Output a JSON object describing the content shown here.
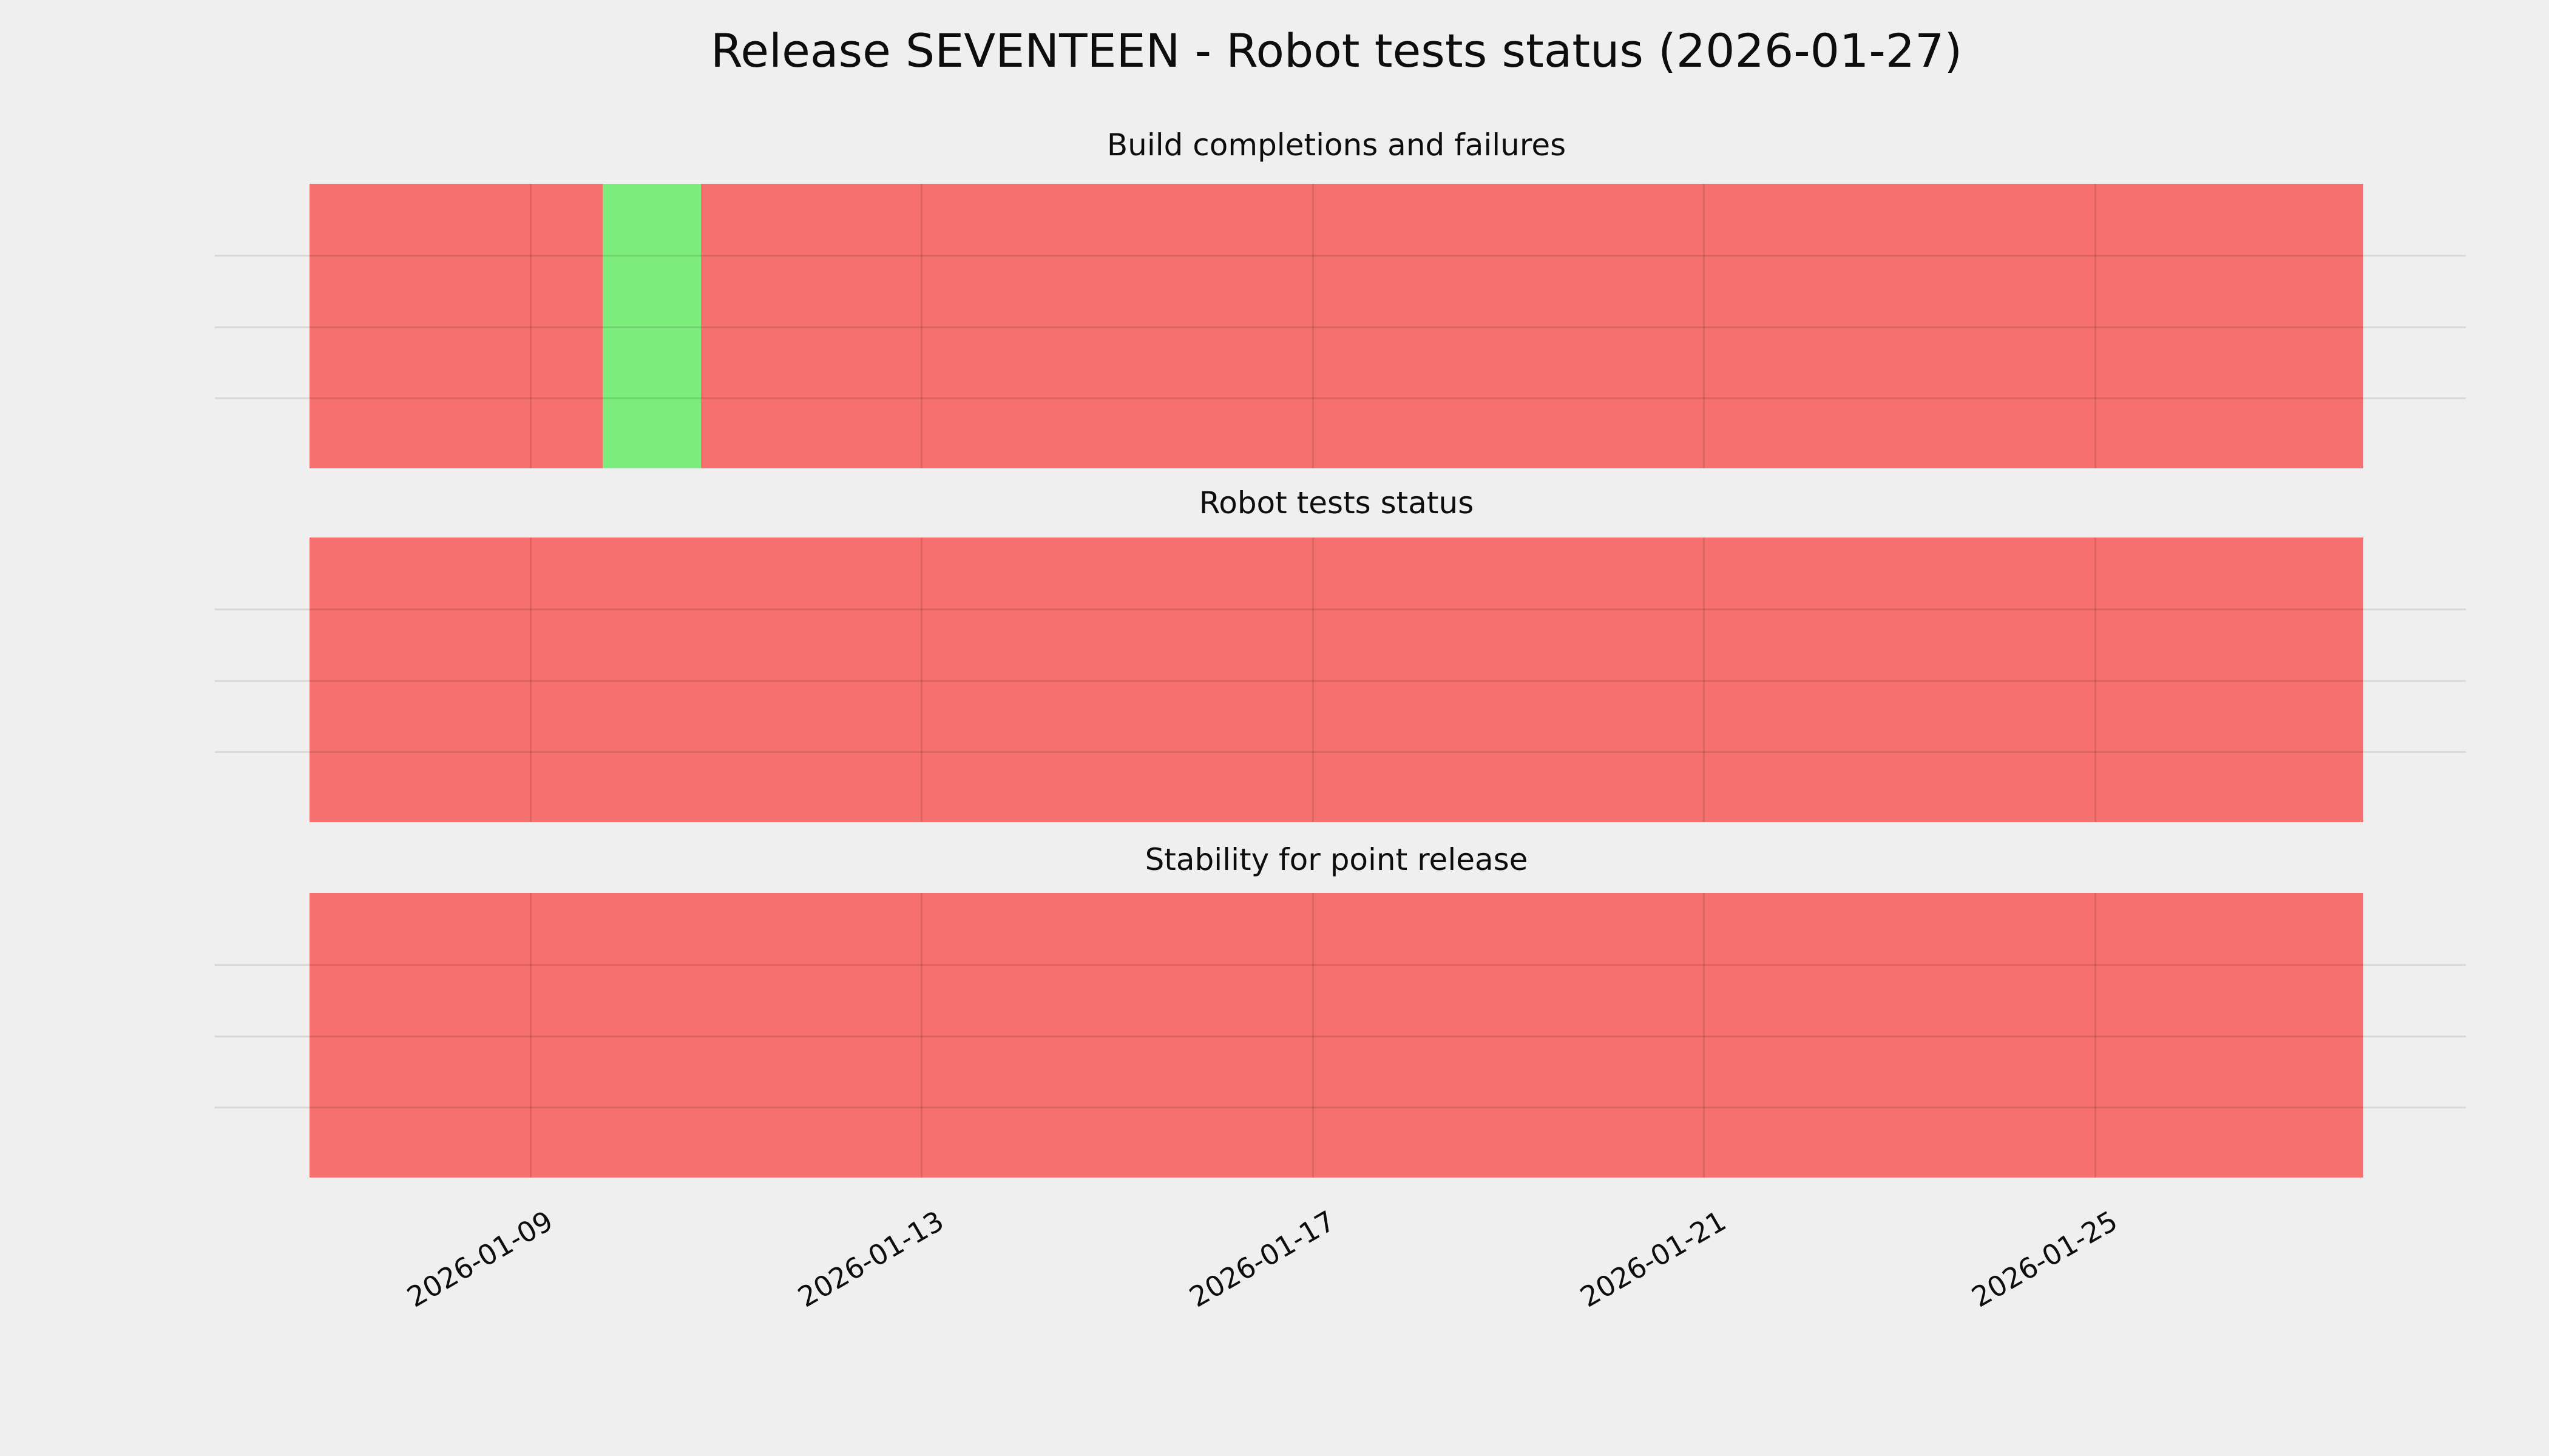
{
  "chart_data": {
    "type": "heatmap",
    "title": "Release SEVENTEEN - Robot tests status (2026-01-27)",
    "background_color": "#efefef",
    "status_colors": {
      "fail": "#f5706e",
      "pass": "#7cec7c"
    },
    "x_axis": {
      "min": 6.75,
      "max": 27.75,
      "unit": "day-of-January-2026",
      "ticks": [
        {
          "value": 9,
          "label": "2026-01-09"
        },
        {
          "value": 13,
          "label": "2026-01-13"
        },
        {
          "value": 17,
          "label": "2026-01-17"
        },
        {
          "value": 21,
          "label": "2026-01-21"
        },
        {
          "value": 25,
          "label": "2026-01-25"
        }
      ]
    },
    "grid": {
      "horizontal_divisions": 4,
      "vertical_at_ticks": true
    },
    "subplots": [
      {
        "title": "Build completions and failures",
        "segments": [
          {
            "from": 6.75,
            "to": 9.75,
            "status": "fail"
          },
          {
            "from": 9.75,
            "to": 10.75,
            "status": "pass"
          },
          {
            "from": 10.75,
            "to": 27.75,
            "status": "fail"
          }
        ]
      },
      {
        "title": "Robot tests status",
        "segments": [
          {
            "from": 6.75,
            "to": 27.75,
            "status": "fail"
          }
        ]
      },
      {
        "title": "Stability for point release",
        "segments": [
          {
            "from": 6.75,
            "to": 27.75,
            "status": "fail"
          }
        ]
      }
    ]
  }
}
